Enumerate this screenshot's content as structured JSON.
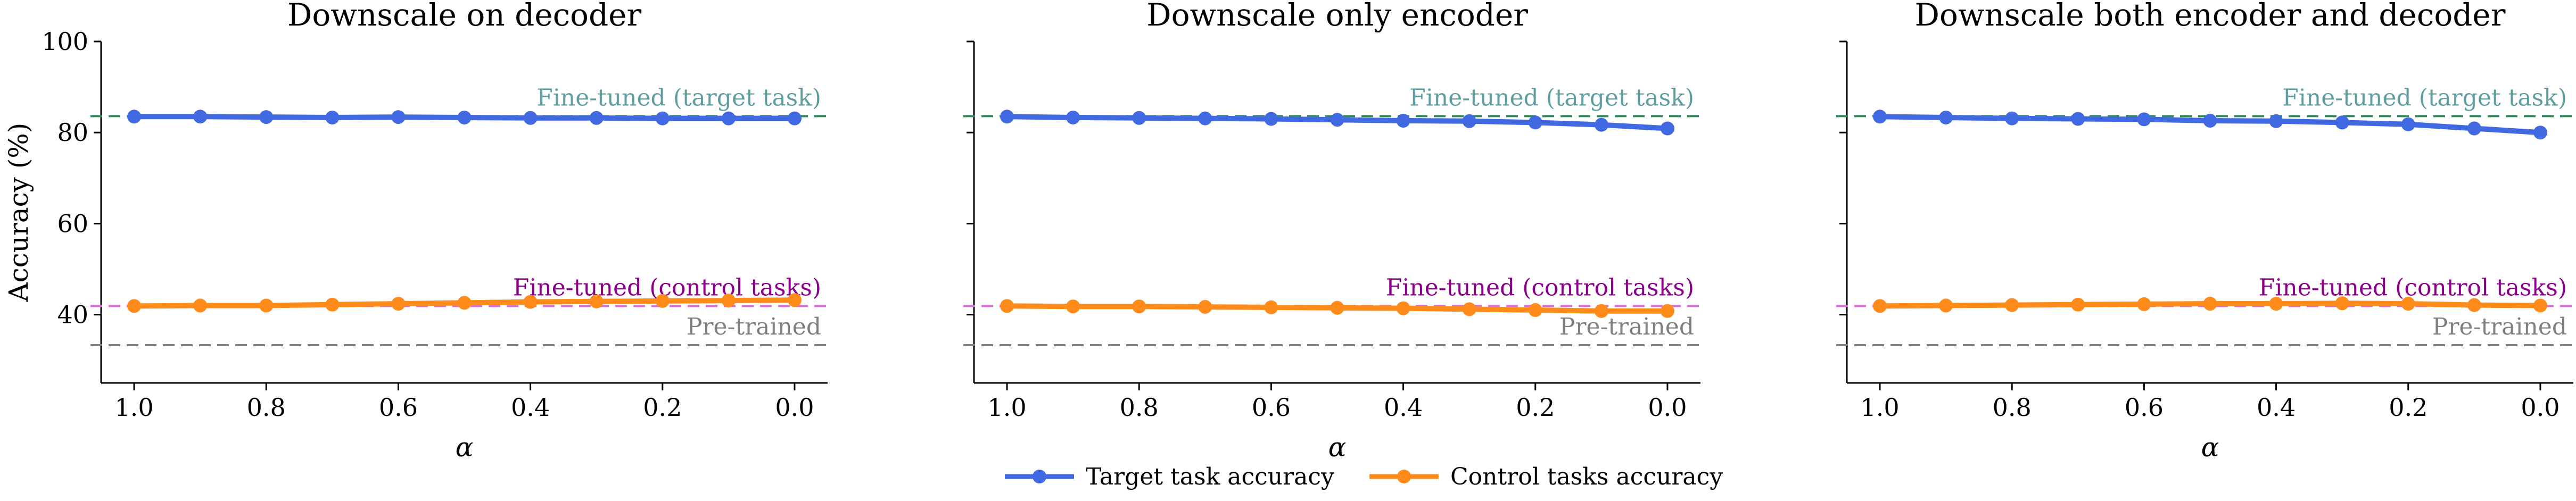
{
  "chart_data": [
    {
      "type": "line",
      "title": "Downscale on decoder",
      "xlabel": "α",
      "ylabel": "Accuracy (%)",
      "x": [
        1.0,
        0.9,
        0.8,
        0.7,
        0.6,
        0.5,
        0.4,
        0.3,
        0.2,
        0.1,
        0.0
      ],
      "xlim": [
        1.05,
        -0.05
      ],
      "ylim": [
        25,
        100
      ],
      "xticks": [
        "1.0",
        "0.8",
        "0.6",
        "0.4",
        "0.2",
        "0.0"
      ],
      "yticks": [
        "40",
        "60",
        "80",
        "100"
      ],
      "series": [
        {
          "name": "Target task accuracy",
          "color": "#4169E1",
          "values": [
            83.5,
            83.5,
            83.4,
            83.3,
            83.4,
            83.3,
            83.2,
            83.2,
            83.1,
            83.1,
            83.1
          ]
        },
        {
          "name": "Control tasks accuracy",
          "color": "#FF8C1A",
          "values": [
            41.9,
            42.0,
            42.0,
            42.2,
            42.4,
            42.6,
            42.8,
            42.9,
            43.0,
            43.1,
            43.2
          ]
        }
      ],
      "reference_lines": [
        {
          "label": "Fine-tuned (target task)",
          "value": 83.6,
          "color": "#2E8B57",
          "text_color": "#5F9EA0"
        },
        {
          "label": "Fine-tuned (control tasks)",
          "value": 41.9,
          "color": "#DA70D6",
          "text_color": "#8B008B"
        },
        {
          "label": "Pre-trained",
          "value": 33.3,
          "color": "#808080",
          "text_color": "#808080"
        }
      ],
      "grid": false
    },
    {
      "type": "line",
      "title": "Downscale only encoder",
      "xlabel": "α",
      "ylabel": "",
      "x": [
        1.0,
        0.9,
        0.8,
        0.7,
        0.6,
        0.5,
        0.4,
        0.3,
        0.2,
        0.1,
        0.0
      ],
      "xlim": [
        1.05,
        -0.05
      ],
      "ylim": [
        25,
        100
      ],
      "xticks": [
        "1.0",
        "0.8",
        "0.6",
        "0.4",
        "0.2",
        "0.0"
      ],
      "yticks": [],
      "series": [
        {
          "name": "Target task accuracy",
          "color": "#4169E1",
          "values": [
            83.5,
            83.3,
            83.2,
            83.1,
            83.0,
            82.8,
            82.6,
            82.5,
            82.2,
            81.7,
            80.9
          ]
        },
        {
          "name": "Control tasks accuracy",
          "color": "#FF8C1A",
          "values": [
            41.9,
            41.8,
            41.8,
            41.7,
            41.6,
            41.5,
            41.4,
            41.2,
            41.0,
            40.8,
            40.8
          ]
        }
      ],
      "reference_lines": [
        {
          "label": "Fine-tuned (target task)",
          "value": 83.6,
          "color": "#2E8B57",
          "text_color": "#5F9EA0"
        },
        {
          "label": "Fine-tuned (control tasks)",
          "value": 41.9,
          "color": "#DA70D6",
          "text_color": "#8B008B"
        },
        {
          "label": "Pre-trained",
          "value": 33.3,
          "color": "#808080",
          "text_color": "#808080"
        }
      ],
      "grid": false
    },
    {
      "type": "line",
      "title": "Downscale both encoder and decoder",
      "xlabel": "α",
      "ylabel": "",
      "x": [
        1.0,
        0.9,
        0.8,
        0.7,
        0.6,
        0.5,
        0.4,
        0.3,
        0.2,
        0.1,
        0.0
      ],
      "xlim": [
        1.05,
        -0.05
      ],
      "ylim": [
        25,
        100
      ],
      "xticks": [
        "1.0",
        "0.8",
        "0.6",
        "0.4",
        "0.2",
        "0.0"
      ],
      "yticks": [],
      "series": [
        {
          "name": "Target task accuracy",
          "color": "#4169E1",
          "values": [
            83.5,
            83.3,
            83.1,
            83.0,
            82.9,
            82.6,
            82.5,
            82.2,
            81.8,
            80.9,
            80.0
          ]
        },
        {
          "name": "Control tasks accuracy",
          "color": "#FF8C1A",
          "values": [
            41.9,
            42.0,
            42.1,
            42.2,
            42.3,
            42.4,
            42.4,
            42.5,
            42.4,
            42.1,
            42.0
          ]
        }
      ],
      "reference_lines": [
        {
          "label": "Fine-tuned (target task)",
          "value": 83.6,
          "color": "#2E8B57",
          "text_color": "#5F9EA0"
        },
        {
          "label": "Fine-tuned (control tasks)",
          "value": 41.9,
          "color": "#DA70D6",
          "text_color": "#8B008B"
        },
        {
          "label": "Pre-trained",
          "value": 33.3,
          "color": "#808080",
          "text_color": "#808080"
        }
      ],
      "grid": false
    }
  ],
  "legend": {
    "placement": "bottom-center",
    "items": [
      {
        "label": "Target task accuracy",
        "color": "#4169E1"
      },
      {
        "label": "Control tasks accuracy",
        "color": "#FF8C1A"
      }
    ]
  }
}
